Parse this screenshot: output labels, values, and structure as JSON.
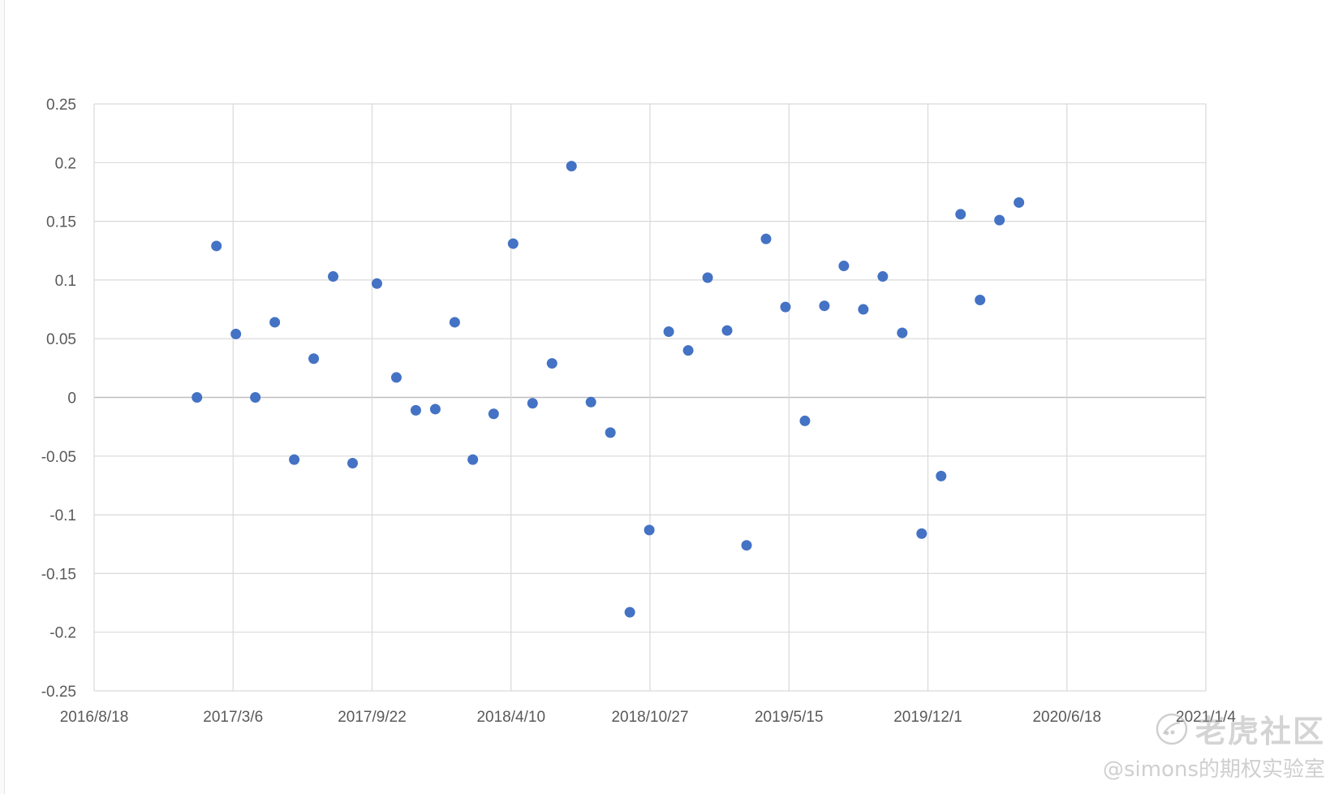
{
  "chart_data": {
    "type": "scatter",
    "title": "",
    "xlabel": "",
    "ylabel": "",
    "x_axis": {
      "type": "date",
      "min": "2016/8/18",
      "max": "2021/1/4",
      "tick_labels": [
        "2016/8/18",
        "2017/3/6",
        "2017/9/22",
        "2018/4/10",
        "2018/10/27",
        "2019/5/15",
        "2019/12/1",
        "2020/6/18",
        "2021/1/4"
      ]
    },
    "y_axis": {
      "min": -0.25,
      "max": 0.25,
      "step": 0.05,
      "tick_labels": [
        "0.25",
        "0.2",
        "0.15",
        "0.1",
        "0.05",
        "0",
        "-0.05",
        "-0.1",
        "-0.15",
        "-0.2",
        "-0.25"
      ]
    },
    "grid": true,
    "legend": "none",
    "marker_color": "#4472C4",
    "points": [
      {
        "x": "2017/1/13",
        "y": 0.0
      },
      {
        "x": "2017/2/10",
        "y": 0.129
      },
      {
        "x": "2017/3/10",
        "y": 0.054
      },
      {
        "x": "2017/4/7",
        "y": 0.0
      },
      {
        "x": "2017/5/5",
        "y": 0.064
      },
      {
        "x": "2017/6/2",
        "y": -0.053
      },
      {
        "x": "2017/6/30",
        "y": 0.033
      },
      {
        "x": "2017/7/28",
        "y": 0.103
      },
      {
        "x": "2017/8/25",
        "y": -0.056
      },
      {
        "x": "2017/9/29",
        "y": 0.097
      },
      {
        "x": "2017/10/27",
        "y": 0.017
      },
      {
        "x": "2017/11/24",
        "y": -0.011
      },
      {
        "x": "2017/12/22",
        "y": -0.01
      },
      {
        "x": "2018/1/19",
        "y": 0.064
      },
      {
        "x": "2018/2/14",
        "y": -0.053
      },
      {
        "x": "2018/3/16",
        "y": -0.014
      },
      {
        "x": "2018/4/13",
        "y": 0.131
      },
      {
        "x": "2018/5/11",
        "y": -0.005
      },
      {
        "x": "2018/6/8",
        "y": 0.029
      },
      {
        "x": "2018/7/6",
        "y": 0.197
      },
      {
        "x": "2018/8/3",
        "y": -0.004
      },
      {
        "x": "2018/8/31",
        "y": -0.03
      },
      {
        "x": "2018/9/28",
        "y": -0.183
      },
      {
        "x": "2018/10/26",
        "y": -0.113
      },
      {
        "x": "2018/11/23",
        "y": 0.056
      },
      {
        "x": "2018/12/21",
        "y": 0.04
      },
      {
        "x": "2019/1/18",
        "y": 0.102
      },
      {
        "x": "2019/2/15",
        "y": 0.057
      },
      {
        "x": "2019/3/15",
        "y": -0.126
      },
      {
        "x": "2019/4/12",
        "y": 0.135
      },
      {
        "x": "2019/5/10",
        "y": 0.077
      },
      {
        "x": "2019/6/7",
        "y": -0.02
      },
      {
        "x": "2019/7/5",
        "y": 0.078
      },
      {
        "x": "2019/8/2",
        "y": 0.112
      },
      {
        "x": "2019/8/30",
        "y": 0.075
      },
      {
        "x": "2019/9/27",
        "y": 0.103
      },
      {
        "x": "2019/10/25",
        "y": 0.055
      },
      {
        "x": "2019/11/22",
        "y": -0.116
      },
      {
        "x": "2019/12/20",
        "y": -0.067
      },
      {
        "x": "2020/1/17",
        "y": 0.156
      },
      {
        "x": "2020/2/14",
        "y": 0.083
      },
      {
        "x": "2020/3/13",
        "y": 0.151
      },
      {
        "x": "2020/4/10",
        "y": 0.166
      }
    ]
  },
  "watermark": {
    "brand": "老虎社区",
    "author": "@simons的期权实验室",
    "logo_icon": "tiger-community-logo-icon"
  }
}
